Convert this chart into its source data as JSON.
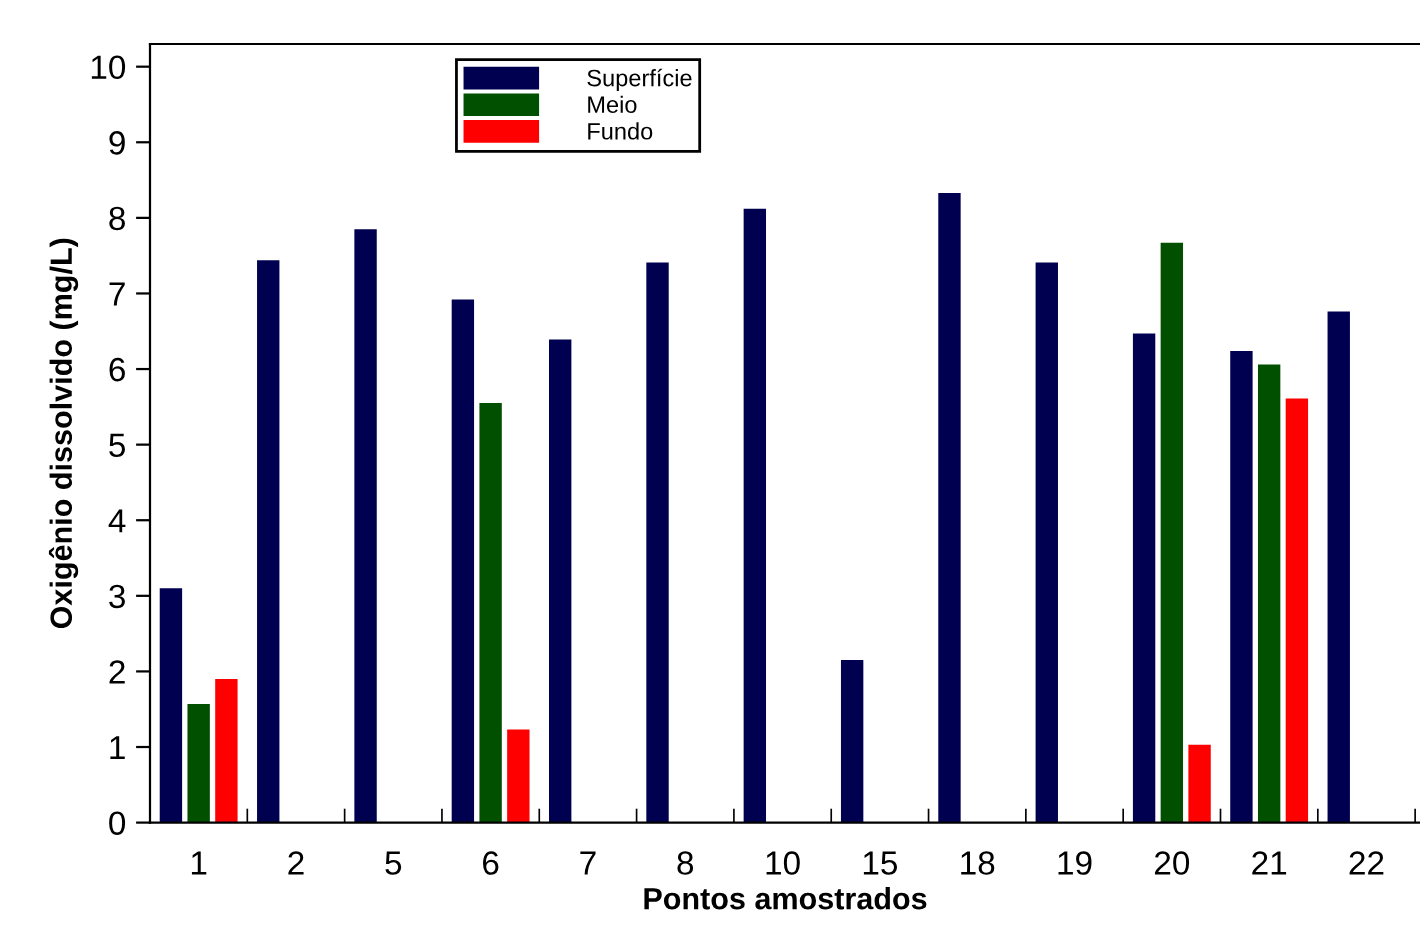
{
  "chart_data": {
    "type": "bar",
    "xlabel": "Pontos amostrados",
    "ylabel": "Oxigênio dissolvido (mg/L)",
    "categories": [
      "1",
      "2",
      "5",
      "6",
      "7",
      "8",
      "10",
      "15",
      "18",
      "19",
      "20",
      "21",
      "22"
    ],
    "series": [
      {
        "name": "Superfície",
        "color": "#000050",
        "values": [
          3.1,
          7.44,
          7.85,
          6.92,
          6.39,
          7.41,
          8.12,
          2.15,
          8.33,
          7.41,
          6.47,
          6.24,
          6.76
        ]
      },
      {
        "name": "Meio",
        "color": "#005000",
        "values": [
          1.57,
          null,
          null,
          5.55,
          null,
          null,
          null,
          null,
          null,
          null,
          7.67,
          6.06,
          null
        ]
      },
      {
        "name": "Fundo",
        "color": "#ff0000",
        "values": [
          1.9,
          null,
          null,
          1.23,
          null,
          null,
          null,
          null,
          null,
          null,
          1.03,
          5.61,
          null
        ]
      }
    ],
    "ylim": [
      0,
      10.3
    ],
    "yticks": [
      0,
      1,
      2,
      3,
      4,
      5,
      6,
      7,
      8,
      9,
      10
    ],
    "grid": false,
    "legend": "top left"
  }
}
